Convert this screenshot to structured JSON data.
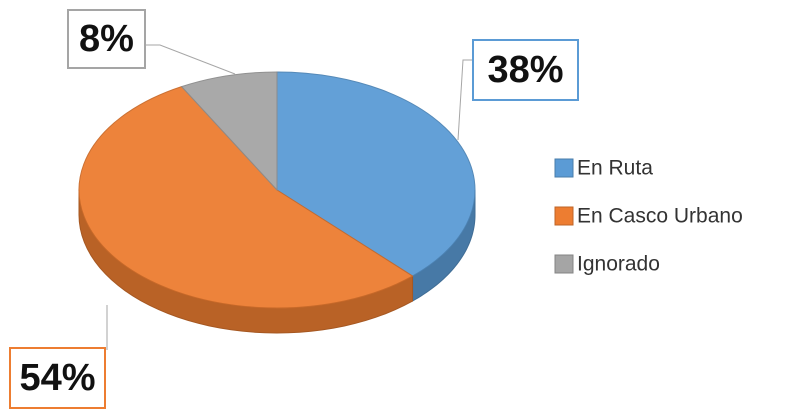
{
  "chart_data": {
    "type": "pie3d",
    "categories": [
      "En Ruta",
      "En Casco Urbano",
      "Ignorado"
    ],
    "values": [
      38,
      54,
      8
    ],
    "value_labels": [
      "38%",
      "54%",
      "8%"
    ],
    "colors": [
      "#5b9bd5",
      "#ed7d31",
      "#a5a5a5"
    ],
    "legend": "right"
  }
}
